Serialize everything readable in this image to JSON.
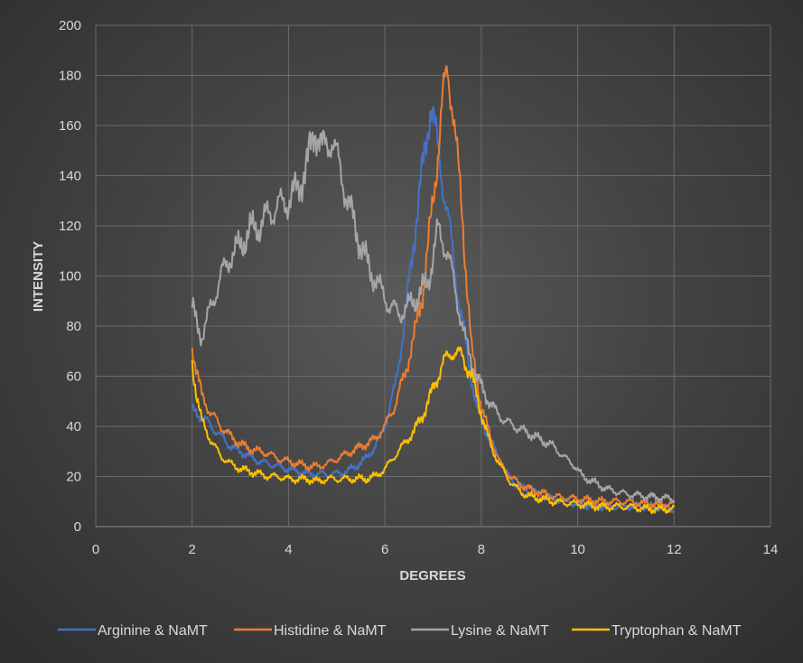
{
  "chart_data": {
    "type": "line",
    "xlabel": "DEGREES",
    "ylabel": "INTENSITY",
    "xlim": [
      0,
      14
    ],
    "ylim": [
      0,
      200
    ],
    "xticks": [
      0,
      2,
      4,
      6,
      8,
      10,
      12,
      14
    ],
    "yticks": [
      0,
      20,
      40,
      60,
      80,
      100,
      120,
      140,
      160,
      180,
      200
    ],
    "grid": true,
    "legend": "bottom",
    "series": [
      {
        "name": "Arginine & NaMT",
        "color": "#4472c4",
        "points": [
          [
            2.0,
            46
          ],
          [
            2.2,
            44
          ],
          [
            2.4,
            40
          ],
          [
            2.6,
            36
          ],
          [
            2.8,
            32
          ],
          [
            3.0,
            30
          ],
          [
            3.2,
            28
          ],
          [
            3.4,
            26
          ],
          [
            3.6,
            25
          ],
          [
            3.8,
            24
          ],
          [
            4.0,
            23
          ],
          [
            4.2,
            22
          ],
          [
            4.4,
            21
          ],
          [
            4.6,
            21
          ],
          [
            4.8,
            21
          ],
          [
            5.0,
            21
          ],
          [
            5.2,
            22
          ],
          [
            5.4,
            24
          ],
          [
            5.6,
            27
          ],
          [
            5.8,
            32
          ],
          [
            6.0,
            40
          ],
          [
            6.2,
            55
          ],
          [
            6.4,
            80
          ],
          [
            6.6,
            115
          ],
          [
            6.8,
            145
          ],
          [
            6.95,
            170
          ],
          [
            7.1,
            150
          ],
          [
            7.3,
            125
          ],
          [
            7.5,
            95
          ],
          [
            7.7,
            70
          ],
          [
            7.9,
            48
          ],
          [
            8.1,
            38
          ],
          [
            8.3,
            30
          ],
          [
            8.5,
            22
          ],
          [
            8.7,
            17
          ],
          [
            9.0,
            14
          ],
          [
            9.5,
            11
          ],
          [
            10.0,
            9
          ],
          [
            10.5,
            8
          ],
          [
            11.0,
            8
          ],
          [
            11.5,
            8
          ],
          [
            12.0,
            7
          ]
        ]
      },
      {
        "name": "Histidine & NaMT",
        "color": "#ed7d31",
        "points": [
          [
            2.0,
            72
          ],
          [
            2.1,
            62
          ],
          [
            2.2,
            52
          ],
          [
            2.4,
            45
          ],
          [
            2.6,
            40
          ],
          [
            2.8,
            36
          ],
          [
            3.0,
            33
          ],
          [
            3.2,
            31
          ],
          [
            3.4,
            30
          ],
          [
            3.6,
            29
          ],
          [
            3.8,
            27
          ],
          [
            4.0,
            26
          ],
          [
            4.2,
            25
          ],
          [
            4.4,
            24
          ],
          [
            4.6,
            24
          ],
          [
            4.8,
            25
          ],
          [
            5.0,
            27
          ],
          [
            5.2,
            29
          ],
          [
            5.4,
            31
          ],
          [
            5.6,
            33
          ],
          [
            5.8,
            35
          ],
          [
            6.0,
            40
          ],
          [
            6.2,
            48
          ],
          [
            6.4,
            60
          ],
          [
            6.6,
            75
          ],
          [
            6.8,
            95
          ],
          [
            7.0,
            130
          ],
          [
            7.2,
            170
          ],
          [
            7.3,
            182
          ],
          [
            7.4,
            170
          ],
          [
            7.6,
            125
          ],
          [
            7.8,
            70
          ],
          [
            8.0,
            48
          ],
          [
            8.2,
            35
          ],
          [
            8.4,
            25
          ],
          [
            8.6,
            20
          ],
          [
            8.8,
            17
          ],
          [
            9.0,
            15
          ],
          [
            9.5,
            12
          ],
          [
            10.0,
            11
          ],
          [
            10.5,
            10
          ],
          [
            11.0,
            10
          ],
          [
            11.5,
            9
          ],
          [
            12.0,
            9
          ]
        ]
      },
      {
        "name": "Lysine & NaMT",
        "color": "#a5a5a5",
        "points": [
          [
            2.0,
            88
          ],
          [
            2.1,
            80
          ],
          [
            2.2,
            76
          ],
          [
            2.4,
            88
          ],
          [
            2.6,
            100
          ],
          [
            2.8,
            108
          ],
          [
            3.0,
            112
          ],
          [
            3.2,
            118
          ],
          [
            3.4,
            120
          ],
          [
            3.6,
            125
          ],
          [
            3.8,
            128
          ],
          [
            4.0,
            130
          ],
          [
            4.2,
            135
          ],
          [
            4.4,
            145
          ],
          [
            4.55,
            160
          ],
          [
            4.7,
            150
          ],
          [
            4.9,
            155
          ],
          [
            5.1,
            140
          ],
          [
            5.3,
            125
          ],
          [
            5.5,
            112
          ],
          [
            5.7,
            102
          ],
          [
            5.9,
            95
          ],
          [
            6.1,
            88
          ],
          [
            6.3,
            85
          ],
          [
            6.5,
            88
          ],
          [
            6.7,
            92
          ],
          [
            6.9,
            98
          ],
          [
            7.1,
            118
          ],
          [
            7.3,
            110
          ],
          [
            7.5,
            90
          ],
          [
            7.7,
            72
          ],
          [
            7.9,
            60
          ],
          [
            8.1,
            52
          ],
          [
            8.3,
            46
          ],
          [
            8.5,
            42
          ],
          [
            8.7,
            40
          ],
          [
            8.9,
            38
          ],
          [
            9.1,
            36
          ],
          [
            9.3,
            34
          ],
          [
            9.5,
            32
          ],
          [
            9.7,
            28
          ],
          [
            9.9,
            25
          ],
          [
            10.1,
            20
          ],
          [
            10.3,
            18
          ],
          [
            10.6,
            15
          ],
          [
            11.0,
            13
          ],
          [
            11.5,
            12
          ],
          [
            12.0,
            11
          ]
        ]
      },
      {
        "name": "Tryptophan & NaMT",
        "color": "#ffc000",
        "points": [
          [
            2.0,
            65
          ],
          [
            2.1,
            52
          ],
          [
            2.2,
            42
          ],
          [
            2.4,
            34
          ],
          [
            2.6,
            28
          ],
          [
            2.8,
            25
          ],
          [
            3.0,
            23
          ],
          [
            3.2,
            22
          ],
          [
            3.4,
            21
          ],
          [
            3.6,
            20
          ],
          [
            3.8,
            20
          ],
          [
            4.0,
            19
          ],
          [
            4.2,
            19
          ],
          [
            4.4,
            19
          ],
          [
            4.6,
            18
          ],
          [
            4.8,
            19
          ],
          [
            5.0,
            19
          ],
          [
            5.2,
            19
          ],
          [
            5.4,
            19
          ],
          [
            5.6,
            19
          ],
          [
            5.8,
            20
          ],
          [
            6.0,
            23
          ],
          [
            6.2,
            28
          ],
          [
            6.4,
            33
          ],
          [
            6.6,
            38
          ],
          [
            6.8,
            45
          ],
          [
            7.0,
            55
          ],
          [
            7.2,
            65
          ],
          [
            7.4,
            70
          ],
          [
            7.6,
            68
          ],
          [
            7.8,
            60
          ],
          [
            8.0,
            45
          ],
          [
            8.2,
            32
          ],
          [
            8.4,
            24
          ],
          [
            8.6,
            18
          ],
          [
            8.8,
            14
          ],
          [
            9.0,
            12
          ],
          [
            9.5,
            10
          ],
          [
            10.0,
            9
          ],
          [
            10.5,
            8
          ],
          [
            11.0,
            8
          ],
          [
            11.5,
            7
          ],
          [
            12.0,
            7
          ]
        ]
      }
    ]
  }
}
